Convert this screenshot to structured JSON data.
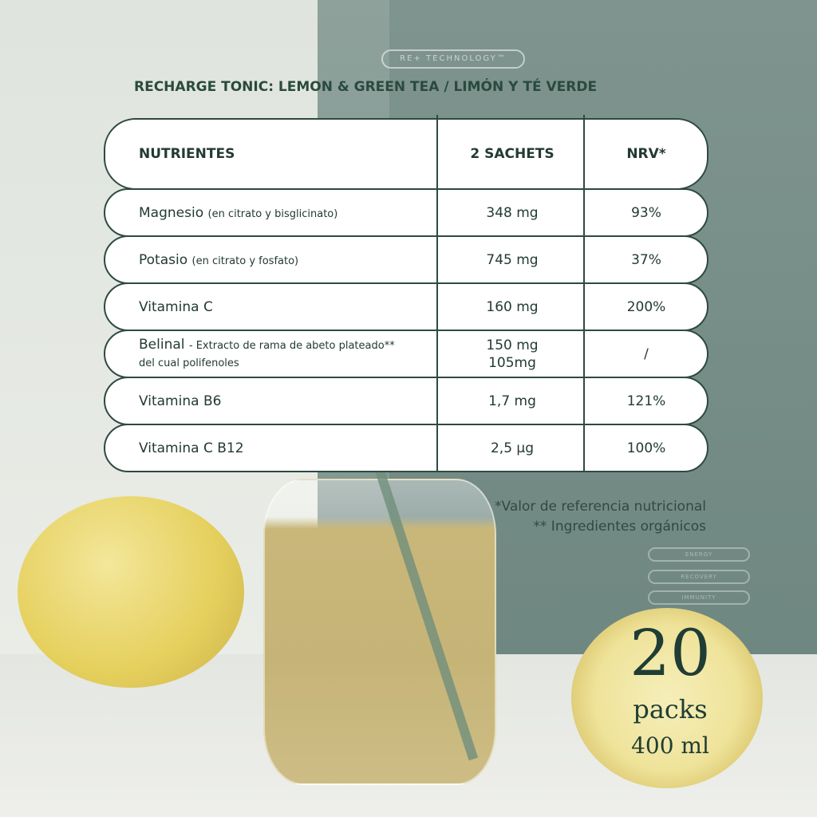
{
  "title": "RECHARGE TONIC: LEMON & GREEN TEA / LIMÓN Y TÉ VERDE",
  "package_label": "RE+ TECHNOLOGY™",
  "package_pills": [
    "ENERGY",
    "RECOVERY",
    "IMMUNITY"
  ],
  "table": {
    "headers": [
      "NUTRIENTES",
      "2 SACHETS",
      "NRV*"
    ],
    "rows": [
      {
        "name": "Magnesio",
        "detail": "(en citrato y bisglicinato)",
        "amount": "348 mg",
        "amount2": "",
        "nrv": "93%"
      },
      {
        "name": "Potasio",
        "detail": "(en citrato y fosfato)",
        "amount": "745 mg",
        "amount2": "",
        "nrv": "37%"
      },
      {
        "name": "Vitamina C",
        "detail": "",
        "amount": "160 mg",
        "amount2": "",
        "nrv": "200%"
      },
      {
        "name": "Belinal",
        "detail": "- Extracto de rama de abeto plateado**",
        "sub": "del cual polifenoles",
        "amount": "150 mg",
        "amount2": "105mg",
        "nrv": "/"
      },
      {
        "name": "Vitamina B6",
        "detail": "",
        "amount": "1,7 mg",
        "amount2": "",
        "nrv": "121%"
      },
      {
        "name": "Vitamina C B12",
        "detail": "",
        "amount": "2,5 µg",
        "amount2": "",
        "nrv": "100%"
      }
    ]
  },
  "notes": [
    "*Valor de referencia nutricional",
    "** Ingredientes orgánicos"
  ],
  "pack": {
    "count": "20",
    "unit": "packs",
    "volume": "400 ml"
  }
}
